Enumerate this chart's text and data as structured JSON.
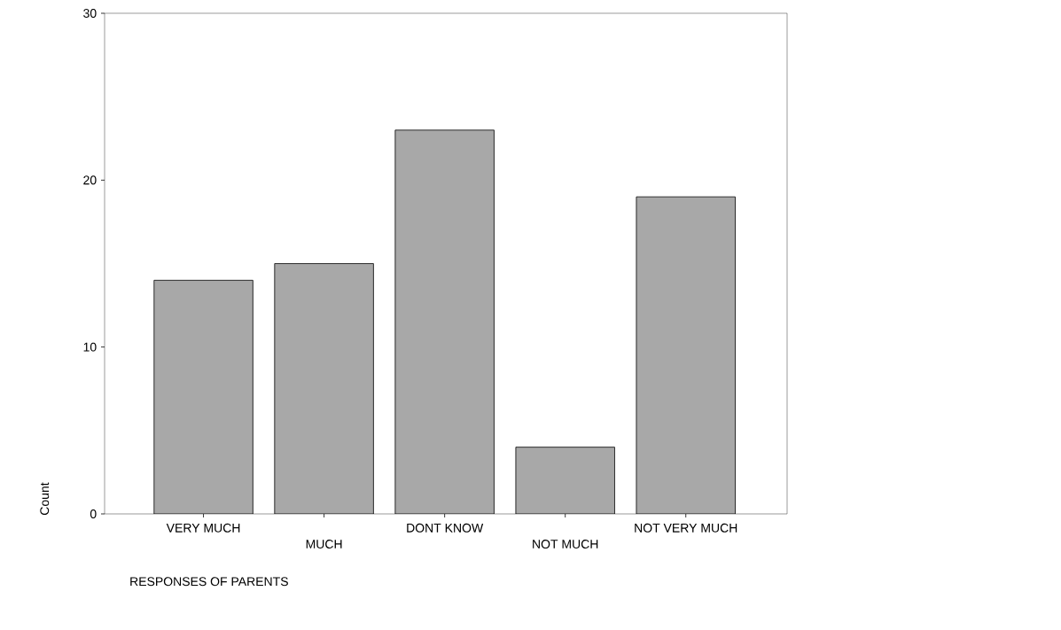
{
  "chart_data": {
    "type": "bar",
    "xlabel": "RESPONSES OF PARENTS",
    "ylabel": "Count",
    "categories": [
      "VERY MUCH",
      "MUCH",
      "DONT KNOW",
      "NOT MUCH",
      "NOT VERY MUCH"
    ],
    "values": [
      14,
      15,
      23,
      4,
      19
    ],
    "color": "#a8a8a8",
    "ylim": [
      0,
      30
    ],
    "yticks": [
      0,
      10,
      20,
      30
    ]
  }
}
